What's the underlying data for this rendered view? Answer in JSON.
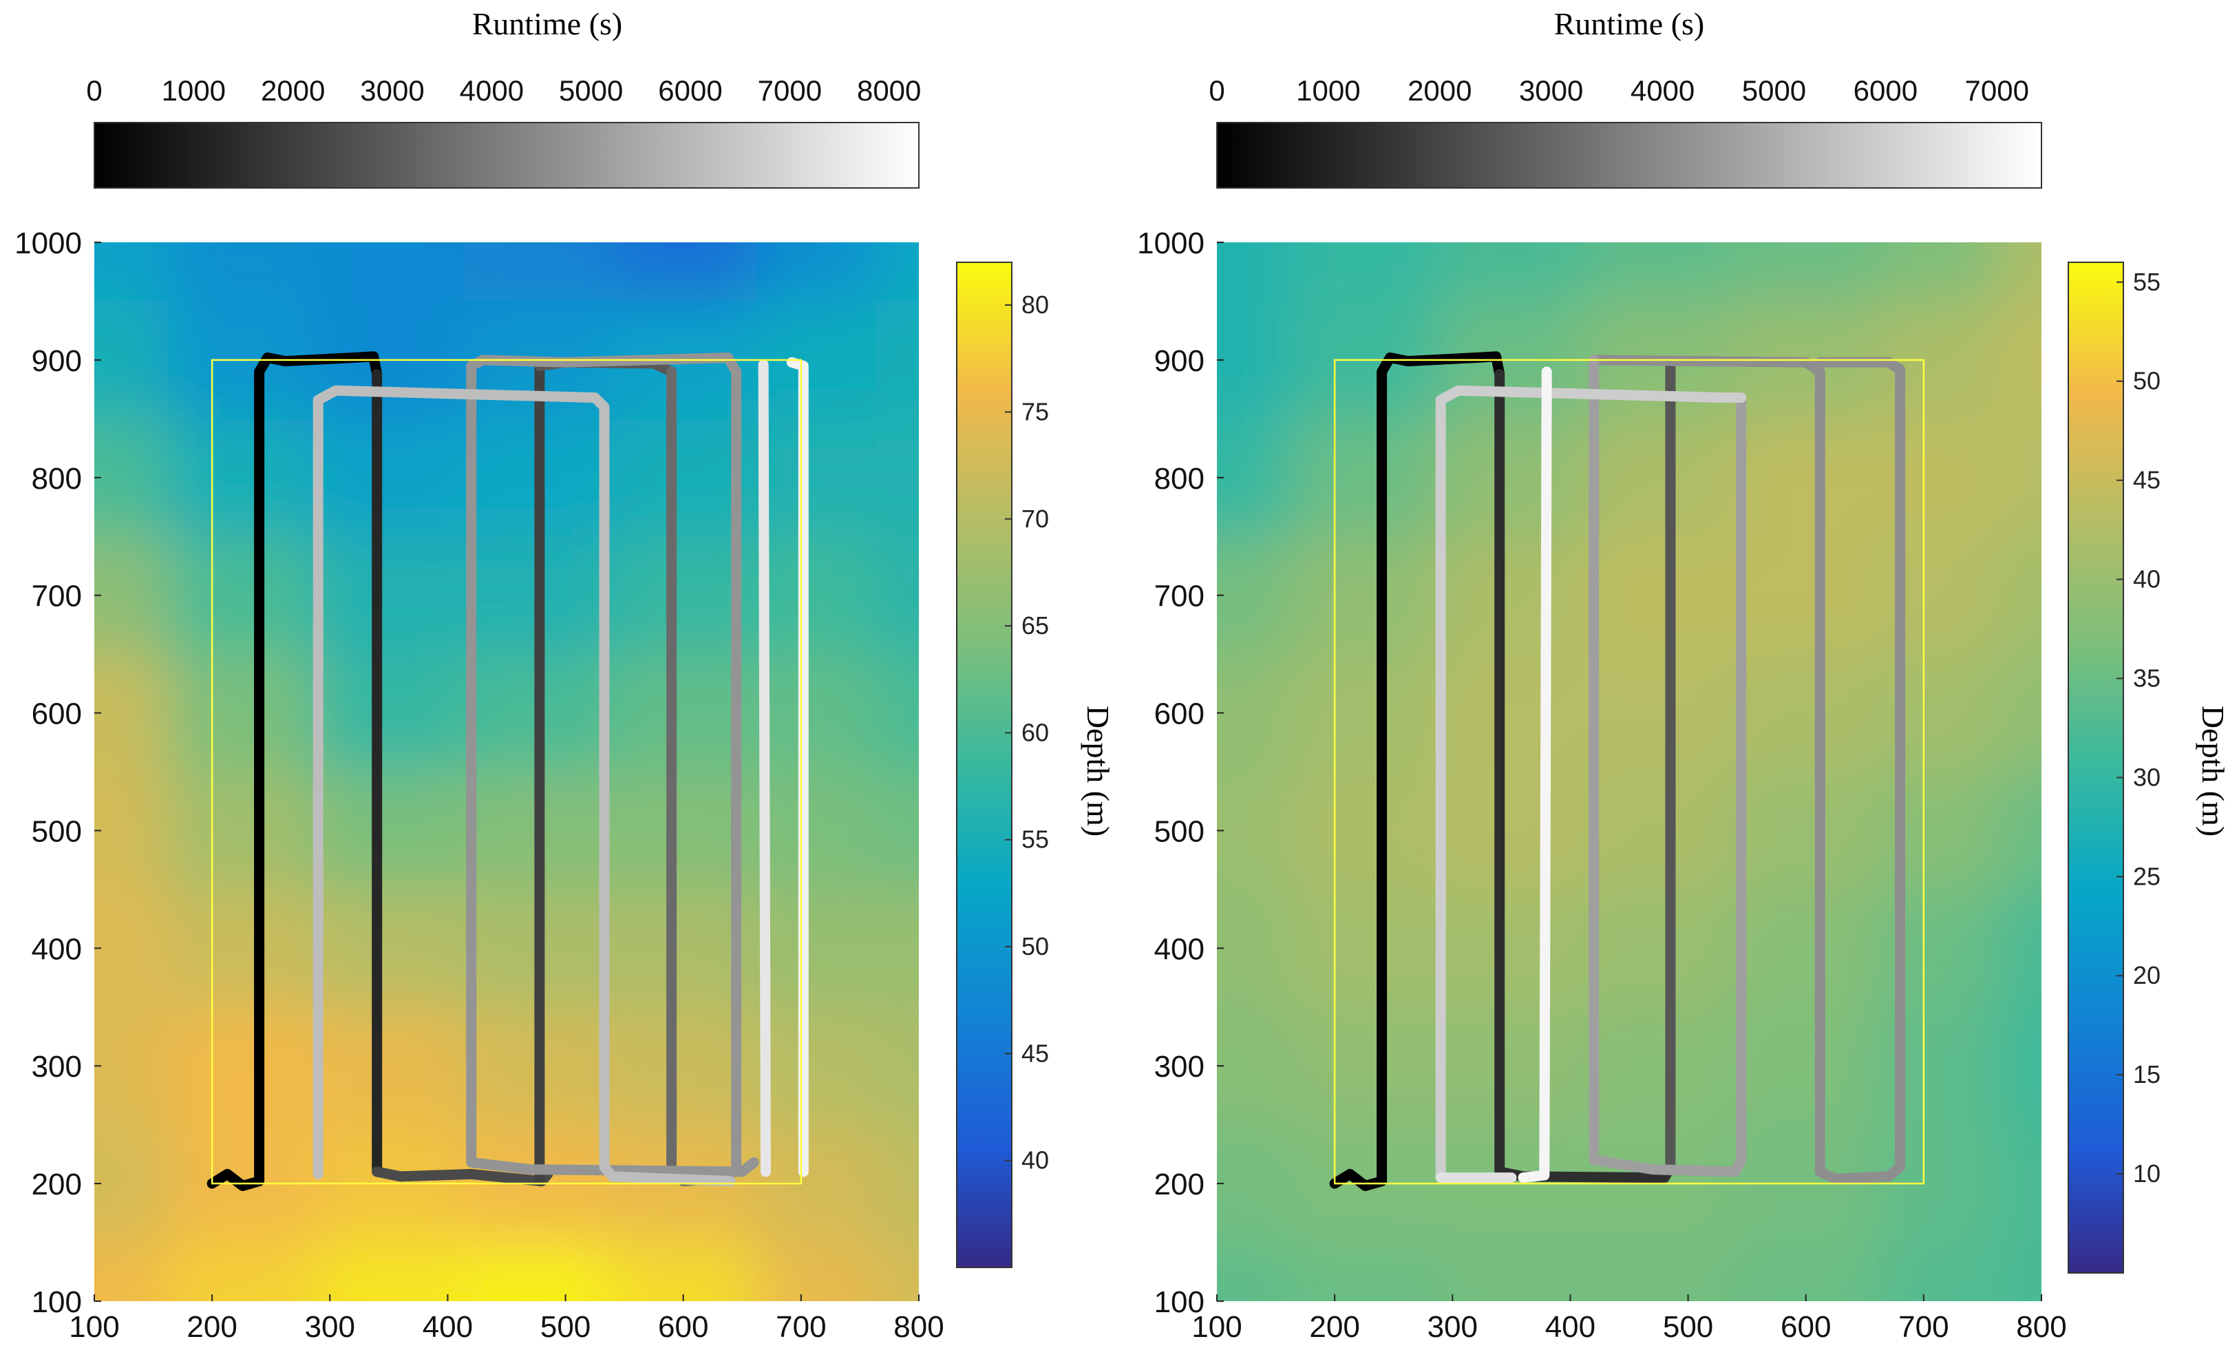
{
  "chart_data": [
    {
      "type": "heatmap",
      "panel": "left",
      "xlim": [
        100,
        800
      ],
      "ylim": [
        100,
        1000
      ],
      "x_ticks": [
        100,
        200,
        300,
        400,
        500,
        600,
        700,
        800
      ],
      "y_ticks": [
        100,
        200,
        300,
        400,
        500,
        600,
        700,
        800,
        900,
        1000
      ],
      "depth_colorbar": {
        "label": "Depth (m)",
        "range": [
          35,
          82
        ],
        "ticks": [
          40,
          45,
          50,
          55,
          60,
          65,
          70,
          75,
          80
        ]
      },
      "runtime_colorbar": {
        "label": "Runtime (s)",
        "range": [
          0,
          8300
        ],
        "ticks": [
          0,
          1000,
          2000,
          3000,
          4000,
          5000,
          6000,
          7000,
          8000
        ]
      },
      "depth_field": {
        "grid_x": [
          100,
          225,
          350,
          475,
          600,
          725,
          800
        ],
        "grid_y": [
          100,
          200,
          300,
          400,
          500,
          600,
          700,
          800,
          900,
          1000
        ],
        "values": [
          [
            76,
            78,
            80,
            81,
            79,
            75,
            73
          ],
          [
            73,
            76,
            77,
            76,
            75,
            73,
            71
          ],
          [
            74,
            76,
            75,
            73,
            72,
            70,
            69
          ],
          [
            74,
            72,
            70,
            69,
            69,
            67,
            67
          ],
          [
            73,
            68,
            64,
            65,
            65,
            64,
            63
          ],
          [
            72,
            64,
            58,
            60,
            62,
            62,
            60
          ],
          [
            66,
            60,
            56,
            56,
            58,
            59,
            57
          ],
          [
            60,
            55,
            52,
            53,
            55,
            56,
            56
          ],
          [
            55,
            50,
            48,
            50,
            52,
            54,
            55
          ],
          [
            52,
            49,
            48,
            47,
            44,
            49,
            53
          ]
        ]
      },
      "survey_box": {
        "x": [
          200,
          700
        ],
        "y": [
          200,
          900
        ]
      },
      "path": [
        [
          200,
          200
        ],
        [
          210,
          208
        ],
        [
          220,
          202
        ],
        [
          230,
          200
        ],
        [
          240,
          200
        ],
        [
          240,
          895
        ],
        [
          260,
          900
        ],
        [
          330,
          903
        ],
        [
          340,
          893
        ],
        [
          340,
          202
        ],
        [
          380,
          204
        ],
        [
          420,
          204
        ],
        [
          480,
          200
        ],
        [
          590,
          898
        ],
        [
          590,
          202
        ],
        [
          650,
          202
        ],
        [
          660,
          893
        ],
        [
          700,
          900
        ],
        [
          700,
          210
        ]
      ],
      "path_segments": [
        {
          "runtime": 0,
          "points": [
            [
              200,
              200
            ],
            [
              213,
              208
            ],
            [
              226,
              198
            ],
            [
              240,
              202
            ],
            [
              240,
              890
            ],
            [
              247,
              902
            ],
            [
              262,
              899
            ],
            [
              320,
              902
            ],
            [
              337,
              903
            ],
            [
              340,
              888
            ]
          ]
        },
        {
          "runtime": 1300,
          "points": [
            [
              340,
              888
            ],
            [
              340,
              210
            ]
          ]
        },
        {
          "runtime": 2500,
          "points": [
            [
              340,
              210
            ],
            [
              360,
              206
            ],
            [
              420,
              208
            ],
            [
              480,
              202
            ],
            [
              485,
              208
            ]
          ]
        },
        {
          "runtime": 2200,
          "points": [
            [
              478,
              202
            ],
            [
              478,
              895
            ]
          ]
        },
        {
          "runtime": 3000,
          "points": [
            [
              478,
              895
            ],
            [
              500,
              898
            ],
            [
              575,
              897
            ],
            [
              590,
              890
            ]
          ]
        },
        {
          "runtime": 3600,
          "points": [
            [
              590,
              890
            ],
            [
              590,
              210
            ],
            [
              600,
              202
            ],
            [
              635,
              205
            ],
            [
              645,
              212
            ]
          ]
        },
        {
          "runtime": 5000,
          "points": [
            [
              645,
              212
            ],
            [
              645,
              890
            ],
            [
              638,
              902
            ],
            [
              500,
              898
            ],
            [
              430,
              900
            ],
            [
              420,
              895
            ],
            [
              420,
              218
            ],
            [
              470,
              212
            ],
            [
              650,
              210
            ],
            [
              660,
              218
            ]
          ]
        },
        {
          "runtime": 6400,
          "points": [
            [
              290,
              208
            ],
            [
              290,
              866
            ],
            [
              305,
              874
            ],
            [
              525,
              868
            ],
            [
              533,
              860
            ],
            [
              533,
              214
            ],
            [
              540,
              206
            ],
            [
              640,
              202
            ]
          ]
        },
        {
          "runtime": 7800,
          "points": [
            [
              668,
              896
            ],
            [
              670,
              210
            ]
          ]
        },
        {
          "runtime": 8200,
          "points": [
            [
              692,
              898
            ],
            [
              702,
              895
            ],
            [
              702,
              210
            ]
          ]
        }
      ]
    },
    {
      "type": "heatmap",
      "panel": "right",
      "xlim": [
        100,
        800
      ],
      "ylim": [
        100,
        1000
      ],
      "x_ticks": [
        100,
        200,
        300,
        400,
        500,
        600,
        700,
        800
      ],
      "y_ticks": [
        100,
        200,
        300,
        400,
        500,
        600,
        700,
        800,
        900,
        1000
      ],
      "depth_colorbar": {
        "label": "Depth (m)",
        "range": [
          5,
          56
        ],
        "ticks": [
          10,
          15,
          20,
          25,
          30,
          35,
          40,
          45,
          50,
          55
        ]
      },
      "runtime_colorbar": {
        "label": "Runtime (s)",
        "range": [
          0,
          7400
        ],
        "ticks": [
          0,
          1000,
          2000,
          3000,
          4000,
          5000,
          6000,
          7000
        ]
      },
      "depth_field": {
        "grid_x": [
          100,
          225,
          350,
          475,
          600,
          725,
          800
        ],
        "grid_y": [
          100,
          200,
          300,
          400,
          500,
          600,
          700,
          800,
          900,
          1000
        ],
        "values": [
          [
            34,
            35,
            36,
            36,
            35,
            33,
            32
          ],
          [
            36,
            37,
            37,
            37,
            36,
            34,
            32
          ],
          [
            38,
            39,
            39,
            38,
            37,
            34,
            31
          ],
          [
            39,
            41,
            41,
            40,
            38,
            35,
            32
          ],
          [
            40,
            42,
            43,
            42,
            40,
            38,
            35
          ],
          [
            39,
            41,
            43,
            43,
            42,
            41,
            39
          ],
          [
            36,
            39,
            42,
            44,
            44,
            43,
            41
          ],
          [
            30,
            35,
            39,
            42,
            44,
            44,
            43
          ],
          [
            28,
            31,
            35,
            38,
            40,
            42,
            44
          ],
          [
            28,
            30,
            32,
            34,
            35,
            37,
            42
          ]
        ]
      },
      "survey_box": {
        "x": [
          200,
          700
        ],
        "y": [
          200,
          900
        ]
      },
      "path_segments": [
        {
          "runtime": 0,
          "points": [
            [
              200,
              200
            ],
            [
              213,
              208
            ],
            [
              226,
              198
            ],
            [
              240,
              202
            ],
            [
              240,
              890
            ],
            [
              247,
              902
            ],
            [
              262,
              899
            ],
            [
              320,
              902
            ],
            [
              337,
              903
            ],
            [
              340,
              888
            ]
          ]
        },
        {
          "runtime": 1400,
          "points": [
            [
              340,
              888
            ],
            [
              340,
              210
            ],
            [
              360,
              206
            ],
            [
              480,
              205
            ],
            [
              485,
              214
            ]
          ]
        },
        {
          "runtime": 2600,
          "points": [
            [
              485,
              214
            ],
            [
              485,
              894
            ]
          ]
        },
        {
          "runtime": 4300,
          "points": [
            [
              420,
              900
            ],
            [
              600,
              898
            ],
            [
              612,
              890
            ],
            [
              612,
              210
            ],
            [
              625,
              204
            ],
            [
              670,
              206
            ],
            [
              680,
              214
            ],
            [
              680,
              892
            ],
            [
              670,
              898
            ],
            [
              612,
              898
            ]
          ]
        },
        {
          "runtime": 4800,
          "points": [
            [
              420,
              900
            ],
            [
              420,
              220
            ],
            [
              470,
              212
            ],
            [
              540,
              210
            ],
            [
              545,
              220
            ],
            [
              545,
              868
            ]
          ]
        },
        {
          "runtime": 6200,
          "points": [
            [
              290,
              208
            ],
            [
              290,
              866
            ],
            [
              305,
              874
            ],
            [
              530,
              868
            ],
            [
              545,
              868
            ]
          ]
        },
        {
          "runtime": 6800,
          "points": [
            [
              290,
              205
            ],
            [
              350,
              205
            ]
          ]
        },
        {
          "runtime": 7400,
          "points": [
            [
              360,
              205
            ],
            [
              378,
              207
            ],
            [
              380,
              890
            ]
          ]
        }
      ]
    }
  ]
}
